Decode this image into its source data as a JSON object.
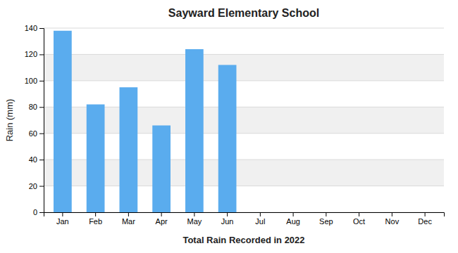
{
  "chart_data": {
    "type": "bar",
    "title": "Sayward Elementary School",
    "xlabel": "Total Rain Recorded in 2022",
    "ylabel": "Rain (mm)",
    "categories": [
      "Jan",
      "Feb",
      "Mar",
      "Apr",
      "May",
      "Jun",
      "Jul",
      "Aug",
      "Sep",
      "Oct",
      "Nov",
      "Dec"
    ],
    "values": [
      138,
      82,
      95,
      66,
      124,
      112,
      0,
      0,
      0,
      0,
      0,
      0
    ],
    "color": "#5aacee",
    "ylim": [
      0,
      140
    ],
    "yticks": [
      0,
      20,
      40,
      60,
      80,
      100,
      120,
      140
    ],
    "grid": true
  }
}
